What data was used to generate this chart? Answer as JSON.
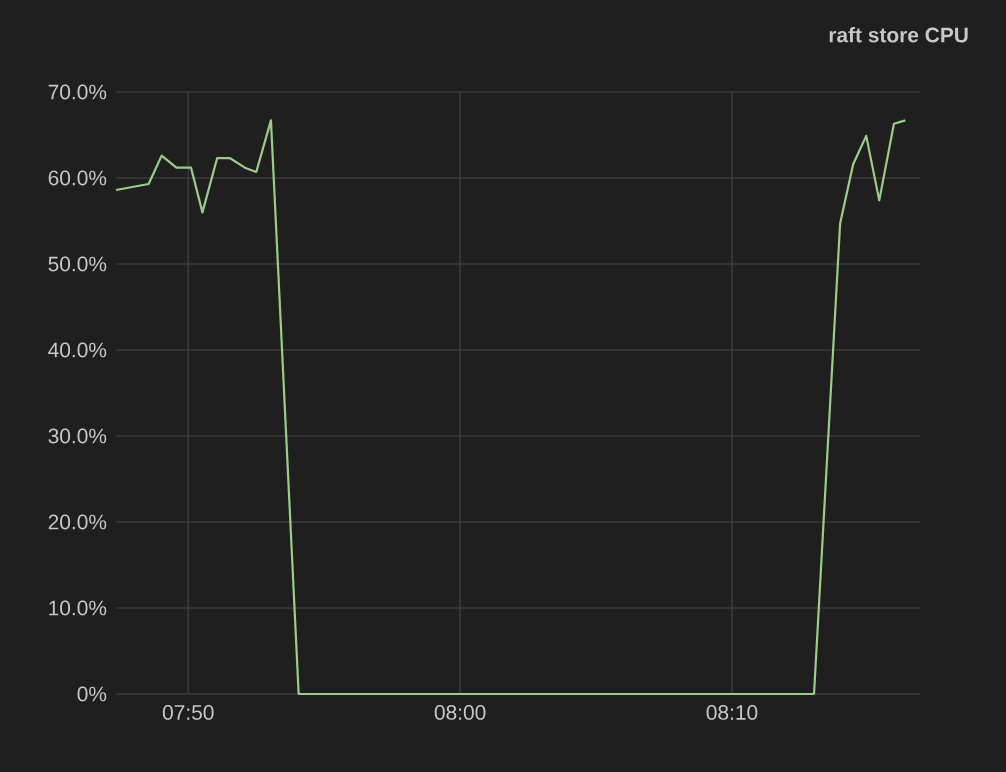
{
  "chart_data": {
    "type": "line",
    "title": "raft store CPU",
    "x": [
      7.789,
      7.809,
      7.817,
      7.826,
      7.835,
      7.842,
      7.851,
      7.859,
      7.868,
      7.875,
      7.884,
      7.901,
      8.217,
      8.233,
      8.241,
      8.249,
      8.257,
      8.266,
      8.273
    ],
    "series": [
      {
        "color": "#9ccc8a",
        "values": [
          58.6,
          59.3,
          62.6,
          61.2,
          61.2,
          56.0,
          62.3,
          62.3,
          61.2,
          60.7,
          66.7,
          0,
          0,
          54.7,
          61.6,
          64.9,
          57.4,
          66.3,
          66.7
        ]
      }
    ],
    "xlim": [
      7.789,
      8.282
    ],
    "ylim": [
      0,
      70
    ],
    "xticks": [
      {
        "value": 7.8333,
        "label": "07:50"
      },
      {
        "value": 8.0,
        "label": "08:00"
      },
      {
        "value": 8.1667,
        "label": "08:10"
      }
    ],
    "yticks": [
      {
        "value": 0,
        "label": "0%"
      },
      {
        "value": 10,
        "label": "10.0%"
      },
      {
        "value": 20,
        "label": "20.0%"
      },
      {
        "value": 30,
        "label": "30.0%"
      },
      {
        "value": 40,
        "label": "40.0%"
      },
      {
        "value": 50,
        "label": "50.0%"
      },
      {
        "value": 60,
        "label": "60.0%"
      },
      {
        "value": 70,
        "label": "70.0%"
      }
    ],
    "grid": true,
    "marker": "none",
    "line_style": "solid"
  }
}
